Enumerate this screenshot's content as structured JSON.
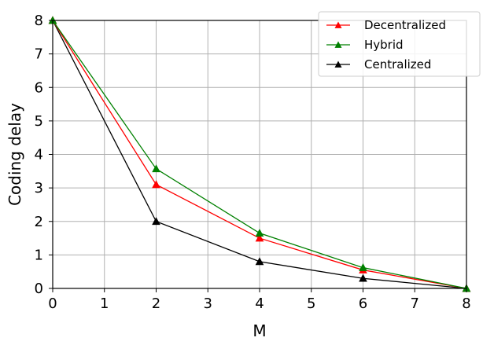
{
  "chart_data": {
    "type": "line",
    "title": "",
    "xlabel": "M",
    "ylabel": "Coding delay",
    "xlim": [
      0,
      8
    ],
    "ylim": [
      0,
      8
    ],
    "xticks": [
      "0",
      "1",
      "2",
      "3",
      "4",
      "5",
      "6",
      "7",
      "8"
    ],
    "yticks": [
      "0",
      "1",
      "2",
      "3",
      "4",
      "5",
      "6",
      "7",
      "8"
    ],
    "grid": true,
    "legend_position": "top-right",
    "series": [
      {
        "name": "Decentralized",
        "color": "#ff0000",
        "marker": "triangle-up",
        "x": [
          0,
          2,
          4,
          6,
          8
        ],
        "y": [
          8,
          3.1,
          1.5,
          0.55,
          0
        ]
      },
      {
        "name": "Hybrid",
        "color": "#008000",
        "marker": "triangle-up",
        "x": [
          0,
          2,
          4,
          6,
          8
        ],
        "y": [
          8,
          3.57,
          1.65,
          0.62,
          0
        ]
      },
      {
        "name": "Centralized",
        "color": "#000000",
        "marker": "triangle-up",
        "x": [
          0,
          2,
          4,
          6,
          8
        ],
        "y": [
          8,
          2,
          0.8,
          0.3,
          0
        ]
      }
    ]
  }
}
